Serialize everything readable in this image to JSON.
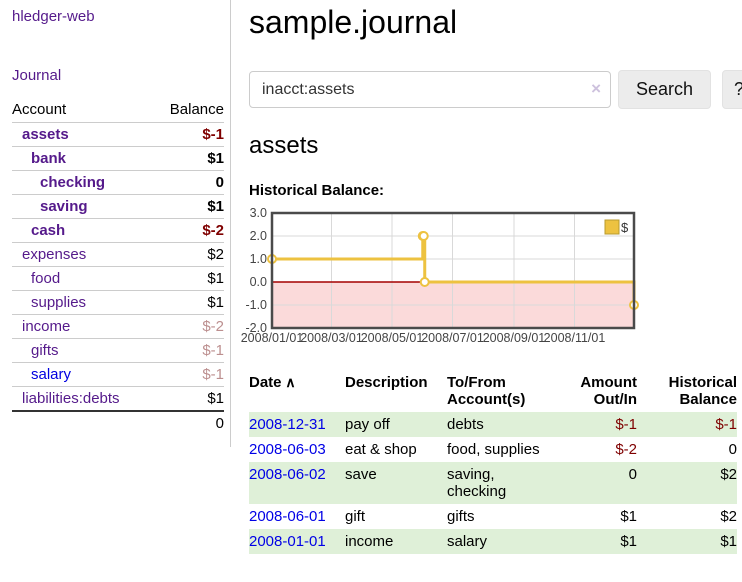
{
  "app": {
    "brand": "hledger-web",
    "nav_journal": "Journal"
  },
  "sidebar": {
    "header": {
      "account": "Account",
      "balance": "Balance"
    },
    "rows": [
      {
        "name": "assets",
        "indent": 1,
        "bold": true,
        "balance": "$-1",
        "balance_style": "neg"
      },
      {
        "name": "bank",
        "indent": 2,
        "bold": true,
        "balance": "$1",
        "balance_style": "pos"
      },
      {
        "name": "checking",
        "indent": 3,
        "bold": true,
        "balance": "0",
        "balance_style": "pos"
      },
      {
        "name": "saving",
        "indent": 3,
        "bold": true,
        "balance": "$1",
        "balance_style": "pos"
      },
      {
        "name": "cash",
        "indent": 2,
        "bold": true,
        "balance": "$-2",
        "balance_style": "neg"
      },
      {
        "name": "expenses",
        "indent": 1,
        "bold": false,
        "balance": "$2",
        "balance_style": "pos"
      },
      {
        "name": "food",
        "indent": 2,
        "bold": false,
        "balance": "$1",
        "balance_style": "pos"
      },
      {
        "name": "supplies",
        "indent": 2,
        "bold": false,
        "balance": "$1",
        "balance_style": "pos"
      },
      {
        "name": "income",
        "indent": 1,
        "bold": false,
        "balance": "$-2",
        "balance_style": "negmuted"
      },
      {
        "name": "gifts",
        "indent": 2,
        "bold": false,
        "balance": "$-1",
        "balance_style": "negmuted"
      },
      {
        "name": "salary",
        "indent": 2,
        "bold": false,
        "balance": "$-1",
        "balance_style": "negmuted",
        "link_unvisited": true
      },
      {
        "name": "liabilities:debts",
        "indent": 1,
        "bold": false,
        "balance": "$1",
        "balance_style": "pos"
      }
    ],
    "total": "0"
  },
  "header": {
    "title": "sample.journal"
  },
  "search": {
    "value": "inacct:assets",
    "clear_icon": "×",
    "button_label": "Search",
    "help_label": "?"
  },
  "main": {
    "account_title": "assets",
    "chart_label": "Historical Balance:"
  },
  "chart_data": {
    "type": "line",
    "step": true,
    "title": "Historical Balance",
    "legend": {
      "label": "$",
      "position": "top-right"
    },
    "ylim": [
      -2,
      3
    ],
    "x_range_days": 365,
    "grid": true,
    "grid_color": "#d9d9d9",
    "border_color": "#4a4a4a",
    "negative_region_color": "#fbdada",
    "zero_line_color": "#a40000",
    "y_ticks": [
      {
        "label": "3.0",
        "value": 3
      },
      {
        "label": "2.0",
        "value": 2
      },
      {
        "label": "1.0",
        "value": 1
      },
      {
        "label": "0.0",
        "value": 0
      },
      {
        "label": "-1.0",
        "value": -1
      },
      {
        "label": "-2.0",
        "value": -2
      }
    ],
    "x_ticks": [
      {
        "label": "2008/01/01",
        "day": 0
      },
      {
        "label": "2008/03/01",
        "day": 60
      },
      {
        "label": "2008/05/01",
        "day": 121
      },
      {
        "label": "2008/07/01",
        "day": 182
      },
      {
        "label": "2008/09/01",
        "day": 244
      },
      {
        "label": "2008/11/01",
        "day": 305
      }
    ],
    "series": [
      {
        "name": "$",
        "color": "#edc240",
        "marker_fill": "#ffffff",
        "points": [
          {
            "date": "2008-01-01",
            "day": 0,
            "value": 1
          },
          {
            "date": "2008-06-01",
            "day": 152,
            "value": 2
          },
          {
            "date": "2008-06-02",
            "day": 153,
            "value": 2
          },
          {
            "date": "2008-06-03",
            "day": 154,
            "value": 0
          },
          {
            "date": "2008-12-31",
            "day": 365,
            "value": -1
          }
        ]
      }
    ]
  },
  "register_table": {
    "sort_caret": "∧",
    "headers": [
      {
        "lines": [
          "Date"
        ],
        "sort": true,
        "align": "left"
      },
      {
        "lines": [
          "Description"
        ],
        "align": "left"
      },
      {
        "lines": [
          "To/From",
          "Account(s)"
        ],
        "align": "left"
      },
      {
        "lines": [
          "Amount",
          "Out/In"
        ],
        "align": "right"
      },
      {
        "lines": [
          "Historical",
          "Balance"
        ],
        "align": "right"
      }
    ],
    "rows": [
      {
        "date": "2008-12-31",
        "description": "pay off",
        "accounts_lines": [
          "debts"
        ],
        "amount": "$-1",
        "amount_neg": true,
        "balance": "$-1",
        "balance_neg": true,
        "highlight": true
      },
      {
        "date": "2008-06-03",
        "description": "eat & shop",
        "accounts_lines": [
          "food, supplies"
        ],
        "amount": "$-2",
        "amount_neg": true,
        "balance": "0",
        "balance_neg": false,
        "highlight": false
      },
      {
        "date": "2008-06-02",
        "description": "save",
        "accounts_lines": [
          "saving,",
          "checking"
        ],
        "amount": "0",
        "amount_neg": false,
        "balance": "$2",
        "balance_neg": false,
        "highlight": true
      },
      {
        "date": "2008-06-01",
        "description": "gift",
        "accounts_lines": [
          "gifts"
        ],
        "amount": "$1",
        "amount_neg": false,
        "balance": "$2",
        "balance_neg": false,
        "highlight": false
      },
      {
        "date": "2008-01-01",
        "description": "income",
        "accounts_lines": [
          "salary"
        ],
        "amount": "$1",
        "amount_neg": false,
        "balance": "$1",
        "balance_neg": false,
        "highlight": true
      }
    ]
  }
}
